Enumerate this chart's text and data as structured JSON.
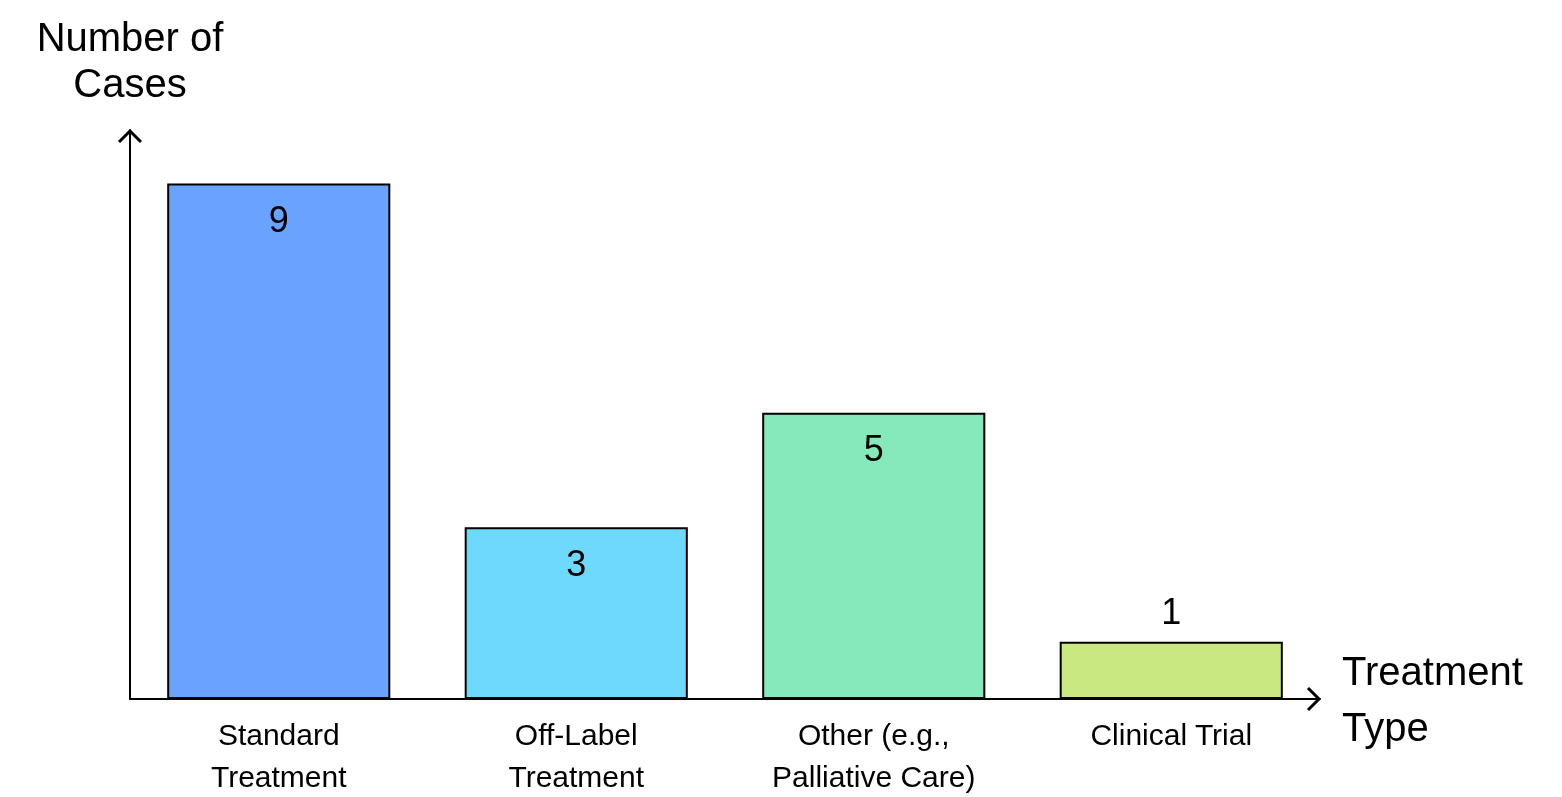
{
  "chart_data": {
    "type": "bar",
    "xlabel": "Treatment\nType",
    "ylabel": "Number of\nCases",
    "categories": [
      "Standard\nTreatment",
      "Off-Label\nTreatment",
      "Other (e.g.,\nPalliative Care)",
      "Clinical Trial"
    ],
    "values": [
      9,
      3,
      5,
      1
    ],
    "colors": [
      "#6aa3ff",
      "#6fd9fd",
      "#86e9bb",
      "#c9e882"
    ],
    "data_labels": true,
    "grid": false
  }
}
